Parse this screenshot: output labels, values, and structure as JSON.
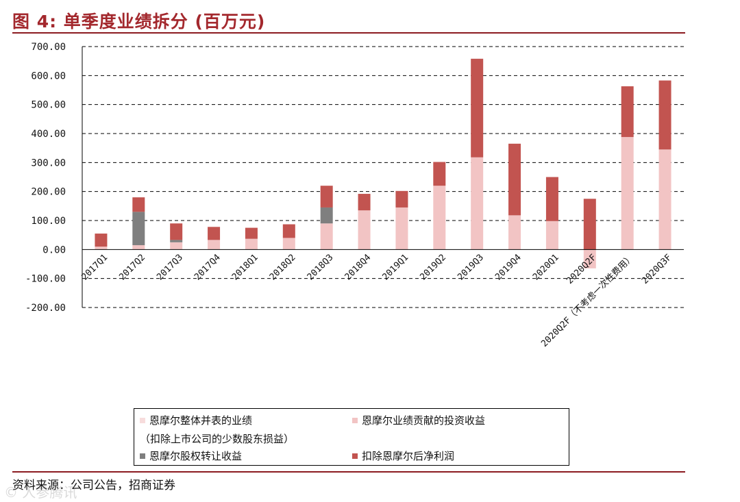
{
  "header": {
    "title": "图 4:  单季度业绩拆分 (百万元)"
  },
  "footer": {
    "source": "资料来源：公司公告，招商证券",
    "watermark": "© 人参腾讯"
  },
  "colors": {
    "series_light": "#f2c4c4",
    "series_gray": "#7f7f7f",
    "series_red": "#c25450",
    "accent": "#a3282d"
  },
  "chart_data": {
    "type": "bar",
    "stacked": true,
    "ylim": [
      -200,
      700
    ],
    "yticks": [
      -200,
      -100,
      0,
      100,
      200,
      300,
      400,
      500,
      600,
      700
    ],
    "ytick_labels": [
      "-200.00",
      "-100.00",
      "0.00",
      "100.00",
      "200.00",
      "300.00",
      "400.00",
      "500.00",
      "600.00",
      "700.00"
    ],
    "grid": "dashed horizontal",
    "legend_position": "bottom",
    "categories": [
      "2017Q1",
      "2017Q2",
      "2017Q3",
      "2017Q4",
      "2018Q1",
      "2018Q2",
      "2018Q3",
      "2018Q4",
      "2019Q1",
      "2019Q2",
      "2019Q3",
      "2019Q4",
      "2020Q1",
      "2020Q2F",
      "2020Q2F（不考虑一次性费用）",
      "2020Q3F"
    ],
    "series": [
      {
        "name": "恩摩尔整体并表的业绩（扣除上市公司的少数股东损益）",
        "color": "#f7dcdc",
        "values": [
          0,
          0,
          0,
          0,
          0,
          0,
          0,
          0,
          0,
          0,
          0,
          0,
          0,
          0,
          0,
          0
        ]
      },
      {
        "name": "恩摩尔业绩贡献的投资收益",
        "color": "#f2c4c4",
        "values": [
          10,
          15,
          25,
          33,
          37,
          40,
          90,
          135,
          145,
          220,
          318,
          118,
          98,
          -65,
          388,
          345
        ]
      },
      {
        "name": "恩摩尔股权转让收益",
        "color": "#7f7f7f",
        "values": [
          0,
          115,
          8,
          0,
          0,
          0,
          55,
          0,
          0,
          0,
          0,
          0,
          0,
          0,
          0,
          0
        ]
      },
      {
        "name": "扣除恩摩尔后净利润",
        "color": "#c25450",
        "values": [
          45,
          50,
          57,
          45,
          38,
          47,
          75,
          57,
          57,
          82,
          340,
          247,
          152,
          175,
          175,
          238
        ]
      }
    ]
  }
}
